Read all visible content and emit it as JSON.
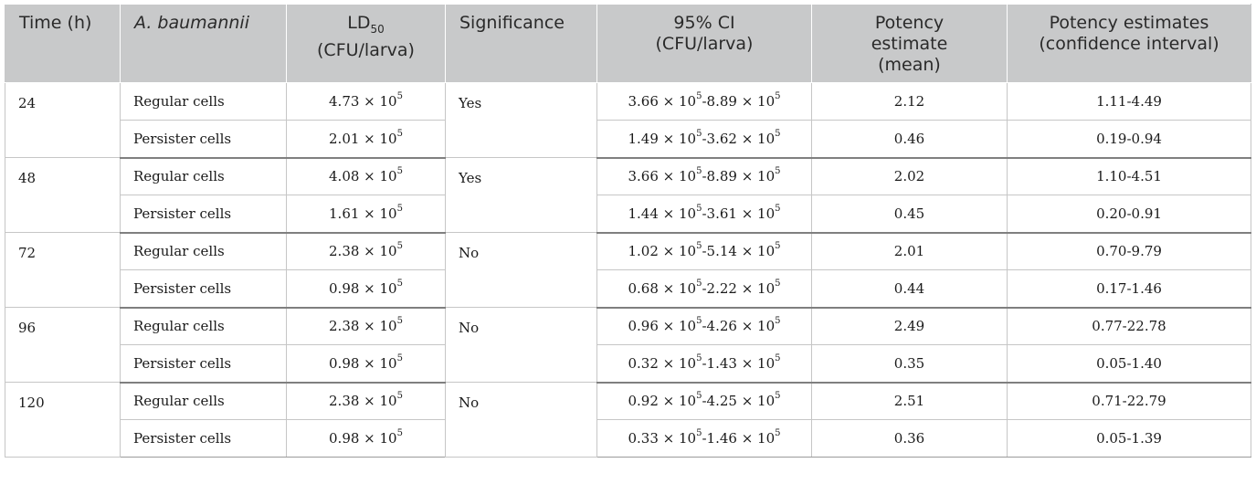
{
  "header": {
    "time": "Time (h)",
    "species": "A. baumannii",
    "ld50_main": "LD",
    "ld50_sub": "50",
    "ld50_unit": "(CFU/larva)",
    "significance": "Significance",
    "ci_title": "95% CI",
    "ci_unit": "(CFU/larva)",
    "potency_mean_l1": "Potency",
    "potency_mean_l2": "estimate",
    "potency_mean_l3": "(mean)",
    "potency_ci_l1": "Potency estimates",
    "potency_ci_l2": "(confidence interval)"
  },
  "groups": [
    {
      "time": "24",
      "significance": "Yes",
      "rows": [
        {
          "cell": "Regular cells",
          "ld50_m": "4.73 × 10",
          "ld50_e": "5",
          "ci_a_m": "3.66 × 10",
          "ci_a_e": "5",
          "ci_b_m": "-8.89 × 10",
          "ci_b_e": "5",
          "pe_mean": "2.12",
          "pe_ci": "1.11-4.49"
        },
        {
          "cell": "Persister cells",
          "ld50_m": "2.01 × 10",
          "ld50_e": "5",
          "ci_a_m": "1.49 × 10",
          "ci_a_e": "5",
          "ci_b_m": "-3.62 × 10",
          "ci_b_e": "5",
          "pe_mean": "0.46",
          "pe_ci": "0.19-0.94"
        }
      ]
    },
    {
      "time": "48",
      "significance": "Yes",
      "rows": [
        {
          "cell": "Regular cells",
          "ld50_m": "4.08 × 10",
          "ld50_e": "5",
          "ci_a_m": "3.66 × 10",
          "ci_a_e": "5",
          "ci_b_m": "-8.89 × 10",
          "ci_b_e": "5",
          "pe_mean": "2.02",
          "pe_ci": "1.10-4.51"
        },
        {
          "cell": "Persister cells",
          "ld50_m": "1.61 × 10",
          "ld50_e": "5",
          "ci_a_m": "1.44 × 10",
          "ci_a_e": "5",
          "ci_b_m": "-3.61 × 10",
          "ci_b_e": "5",
          "pe_mean": "0.45",
          "pe_ci": "0.20-0.91"
        }
      ]
    },
    {
      "time": "72",
      "significance": "No",
      "rows": [
        {
          "cell": "Regular cells",
          "ld50_m": "2.38 × 10",
          "ld50_e": "5",
          "ci_a_m": "1.02 × 10",
          "ci_a_e": "5",
          "ci_b_m": "-5.14 × 10",
          "ci_b_e": "5",
          "pe_mean": "2.01",
          "pe_ci": "0.70-9.79"
        },
        {
          "cell": "Persister cells",
          "ld50_m": "0.98 × 10",
          "ld50_e": "5",
          "ci_a_m": "0.68 × 10",
          "ci_a_e": "5",
          "ci_b_m": "-2.22 × 10",
          "ci_b_e": "5",
          "pe_mean": "0.44",
          "pe_ci": "0.17-1.46"
        }
      ]
    },
    {
      "time": "96",
      "significance": "No",
      "rows": [
        {
          "cell": "Regular cells",
          "ld50_m": "2.38 × 10",
          "ld50_e": "5",
          "ci_a_m": "0.96 × 10",
          "ci_a_e": "5",
          "ci_b_m": "-4.26 × 10",
          "ci_b_e": "5",
          "pe_mean": "2.49",
          "pe_ci": "0.77-22.78"
        },
        {
          "cell": "Persister cells",
          "ld50_m": "0.98 × 10",
          "ld50_e": "5",
          "ci_a_m": "0.32 × 10",
          "ci_a_e": "5",
          "ci_b_m": "-1.43 × 10",
          "ci_b_e": "5",
          "pe_mean": "0.35",
          "pe_ci": "0.05-1.40"
        }
      ]
    },
    {
      "time": "120",
      "significance": "No",
      "rows": [
        {
          "cell": "Regular cells",
          "ld50_m": "2.38 × 10",
          "ld50_e": "5",
          "ci_a_m": "0.92 × 10",
          "ci_a_e": "5",
          "ci_b_m": "-4.25 × 10",
          "ci_b_e": "5",
          "pe_mean": "2.51",
          "pe_ci": "0.71-22.79"
        },
        {
          "cell": "Persister cells",
          "ld50_m": "0.98 × 10",
          "ld50_e": "5",
          "ci_a_m": "0.33 × 10",
          "ci_a_e": "5",
          "ci_b_m": "-1.46 × 10",
          "ci_b_e": "5",
          "pe_mean": "0.36",
          "pe_ci": "0.05-1.39"
        }
      ]
    }
  ]
}
